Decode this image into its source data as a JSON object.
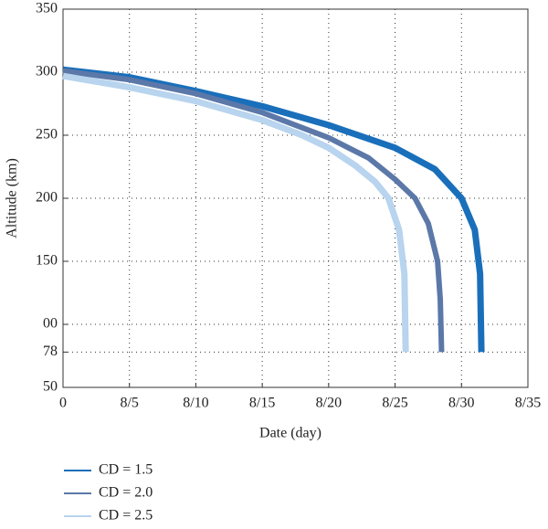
{
  "chart_data": {
    "type": "line",
    "xlabel": "Date (day)",
    "ylabel": "Altitude (km)",
    "xlim": [
      0,
      35
    ],
    "xticks": [
      0,
      {
        "value": 5,
        "label": "8/5"
      },
      {
        "value": 10,
        "label": "8/10"
      },
      {
        "value": 15,
        "label": "8/15"
      },
      {
        "value": 20,
        "label": "8/20"
      },
      {
        "value": 25,
        "label": "8/25"
      },
      {
        "value": 30,
        "label": "8/30"
      },
      {
        "value": 35,
        "label": "8/35"
      }
    ],
    "ylim": [
      50,
      350
    ],
    "yticks": [
      350,
      300,
      250,
      200,
      150,
      {
        "value": 100,
        "label": "00"
      },
      78,
      50
    ],
    "grid": true,
    "legend": "bottom",
    "series": [
      {
        "name": "CD = 1.5",
        "color": "#1a6fba",
        "x": [
          0,
          5,
          10,
          15,
          20,
          25,
          28,
          30,
          31,
          31.4,
          31.5
        ],
        "values": [
          302,
          296,
          285,
          273,
          258,
          240,
          223,
          200,
          175,
          140,
          78
        ]
      },
      {
        "name": "CD = 2.0",
        "color": "#5b78a8",
        "x": [
          0,
          5,
          10,
          15,
          20,
          23,
          25,
          26.5,
          27.5,
          28.2,
          28.4,
          28.5
        ],
        "values": [
          301,
          294,
          283,
          268,
          248,
          232,
          215,
          200,
          180,
          150,
          120,
          78
        ]
      },
      {
        "name": "CD = 2.5",
        "color": "#b8d4ee",
        "x": [
          0,
          5,
          10,
          15,
          18,
          20,
          22,
          23.5,
          24.5,
          25.3,
          25.7,
          25.8
        ],
        "values": [
          297,
          288,
          277,
          262,
          250,
          240,
          226,
          213,
          200,
          175,
          140,
          78
        ]
      }
    ]
  }
}
